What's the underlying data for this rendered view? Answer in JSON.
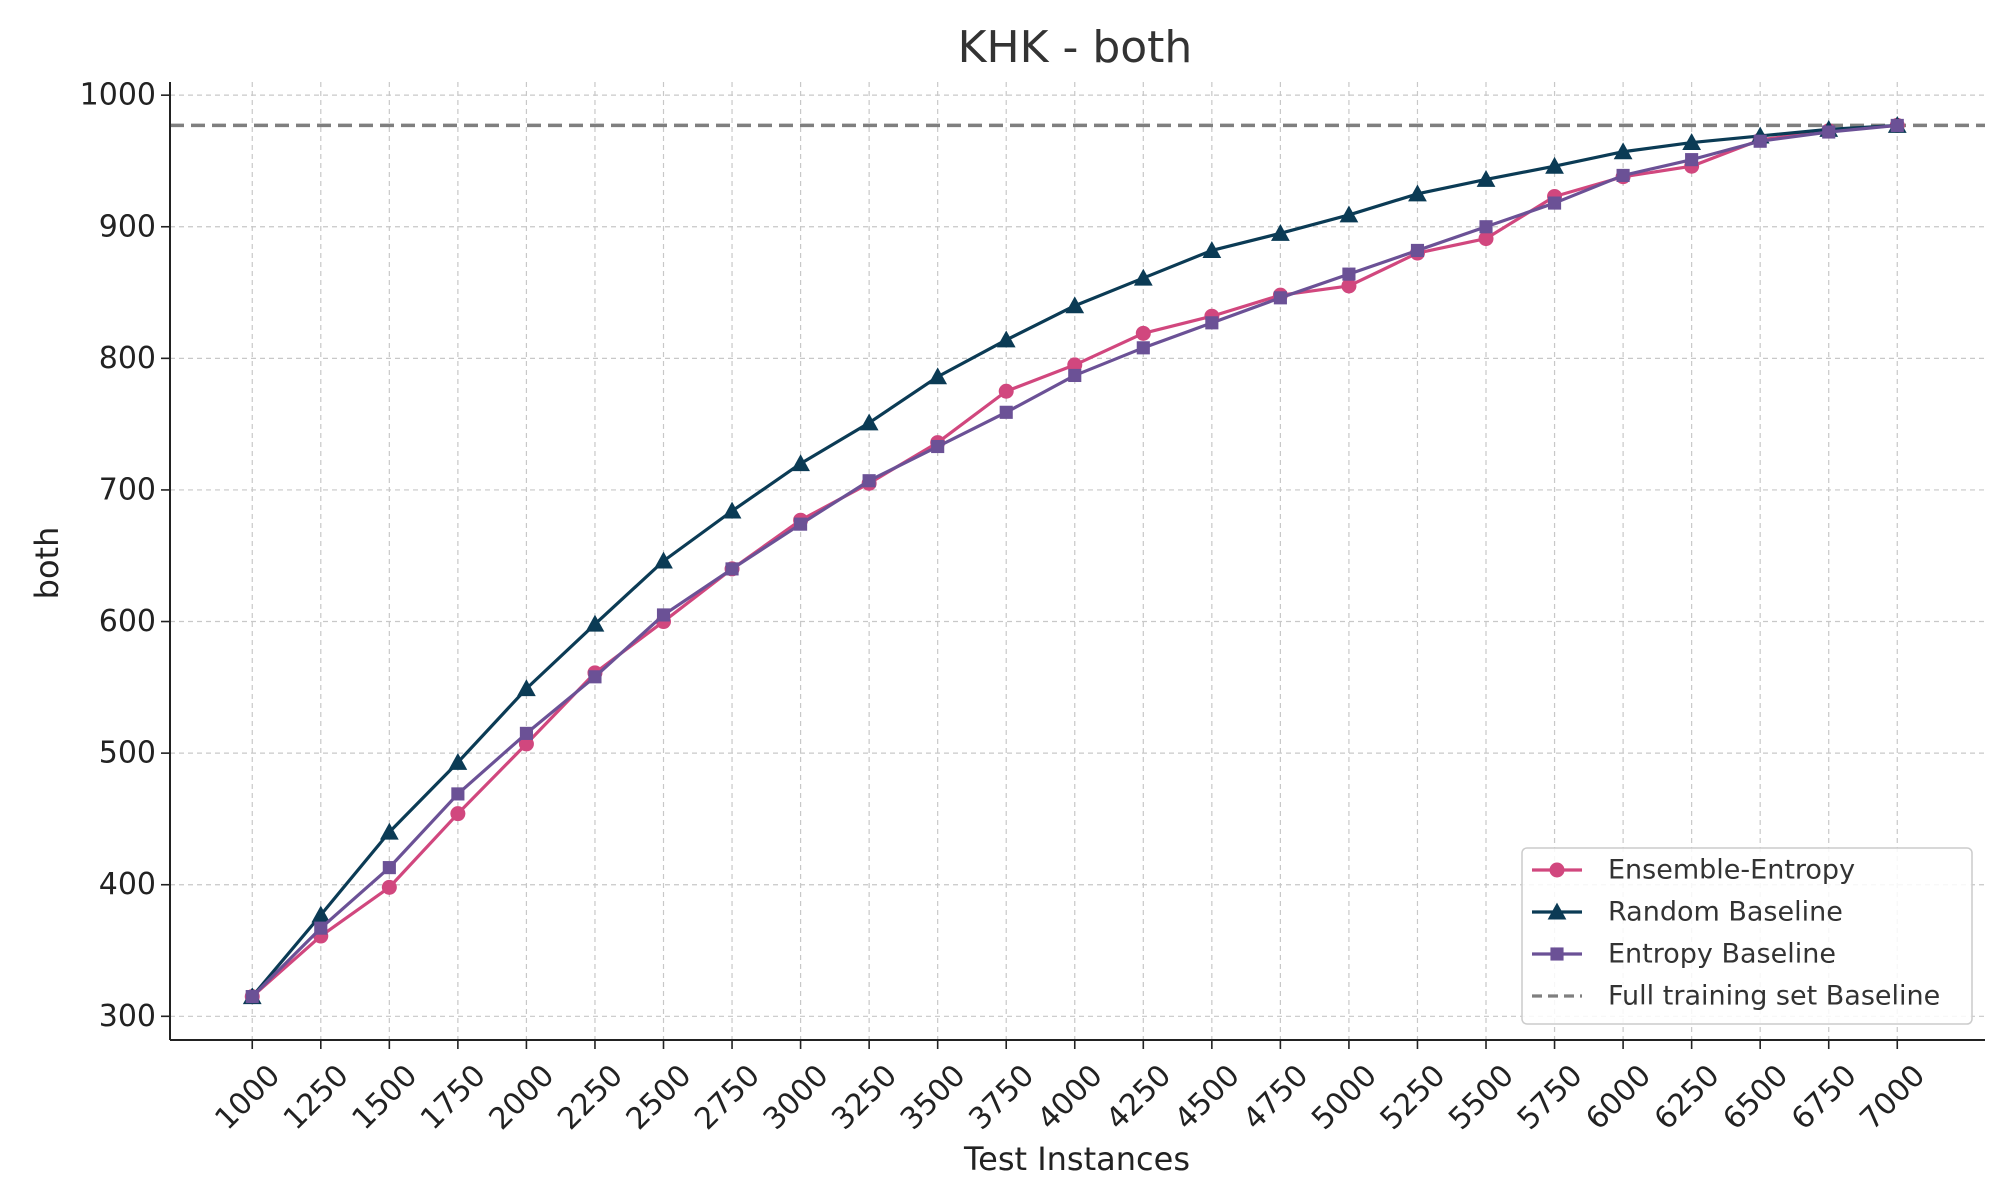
{
  "chart_data": {
    "type": "line",
    "title": "KHK - both",
    "xlabel": "Test Instances",
    "ylabel": "both",
    "x": [
      1000,
      1250,
      1500,
      1750,
      2000,
      2250,
      2500,
      2750,
      3000,
      3250,
      3500,
      3750,
      4000,
      4250,
      4500,
      4750,
      5000,
      5250,
      5500,
      5750,
      6000,
      6250,
      6500,
      6750,
      7000
    ],
    "x_tick_labels": [
      "1000",
      "1250",
      "1500",
      "1750",
      "2000",
      "2250",
      "2500",
      "2750",
      "3000",
      "3250",
      "3500",
      "3750",
      "4000",
      "4250",
      "4500",
      "4750",
      "5000",
      "5250",
      "5500",
      "5750",
      "6000",
      "6250",
      "6500",
      "6750",
      "7000"
    ],
    "y_tick_labels": [
      "300",
      "400",
      "500",
      "600",
      "700",
      "800",
      "900",
      "1000"
    ],
    "y_ticks": [
      300,
      400,
      500,
      600,
      700,
      800,
      900,
      1000
    ],
    "xlim": [
      700,
      7320
    ],
    "ylim": [
      282,
      1010
    ],
    "grid": true,
    "legend_position": "bottom-right",
    "series": [
      {
        "name": "Ensemble-Entropy",
        "color": "#d1477e",
        "marker": "circle",
        "values": [
          315,
          361,
          398,
          454,
          507,
          561,
          600,
          640,
          677,
          705,
          736,
          775,
          795,
          819,
          832,
          848,
          855,
          880,
          891,
          923,
          938,
          946,
          966,
          973,
          977
        ]
      },
      {
        "name": "Random Baseline",
        "color": "#0b3b55",
        "marker": "triangle",
        "values": [
          315,
          377,
          440,
          493,
          549,
          598,
          646,
          684,
          720,
          751,
          786,
          814,
          840,
          861,
          882,
          895,
          909,
          925,
          936,
          946,
          957,
          964,
          969,
          974,
          977
        ]
      },
      {
        "name": "Entropy Baseline",
        "color": "#6b5196",
        "marker": "square",
        "values": [
          315,
          367,
          413,
          469,
          515,
          558,
          605,
          640,
          674,
          707,
          733,
          759,
          787,
          808,
          827,
          846,
          864,
          882,
          900,
          918,
          939,
          951,
          965,
          972,
          977
        ]
      }
    ],
    "reference_line": {
      "name": "Full training set Baseline",
      "value": 977,
      "color": "#7f7f7f",
      "style": "dashed"
    }
  }
}
